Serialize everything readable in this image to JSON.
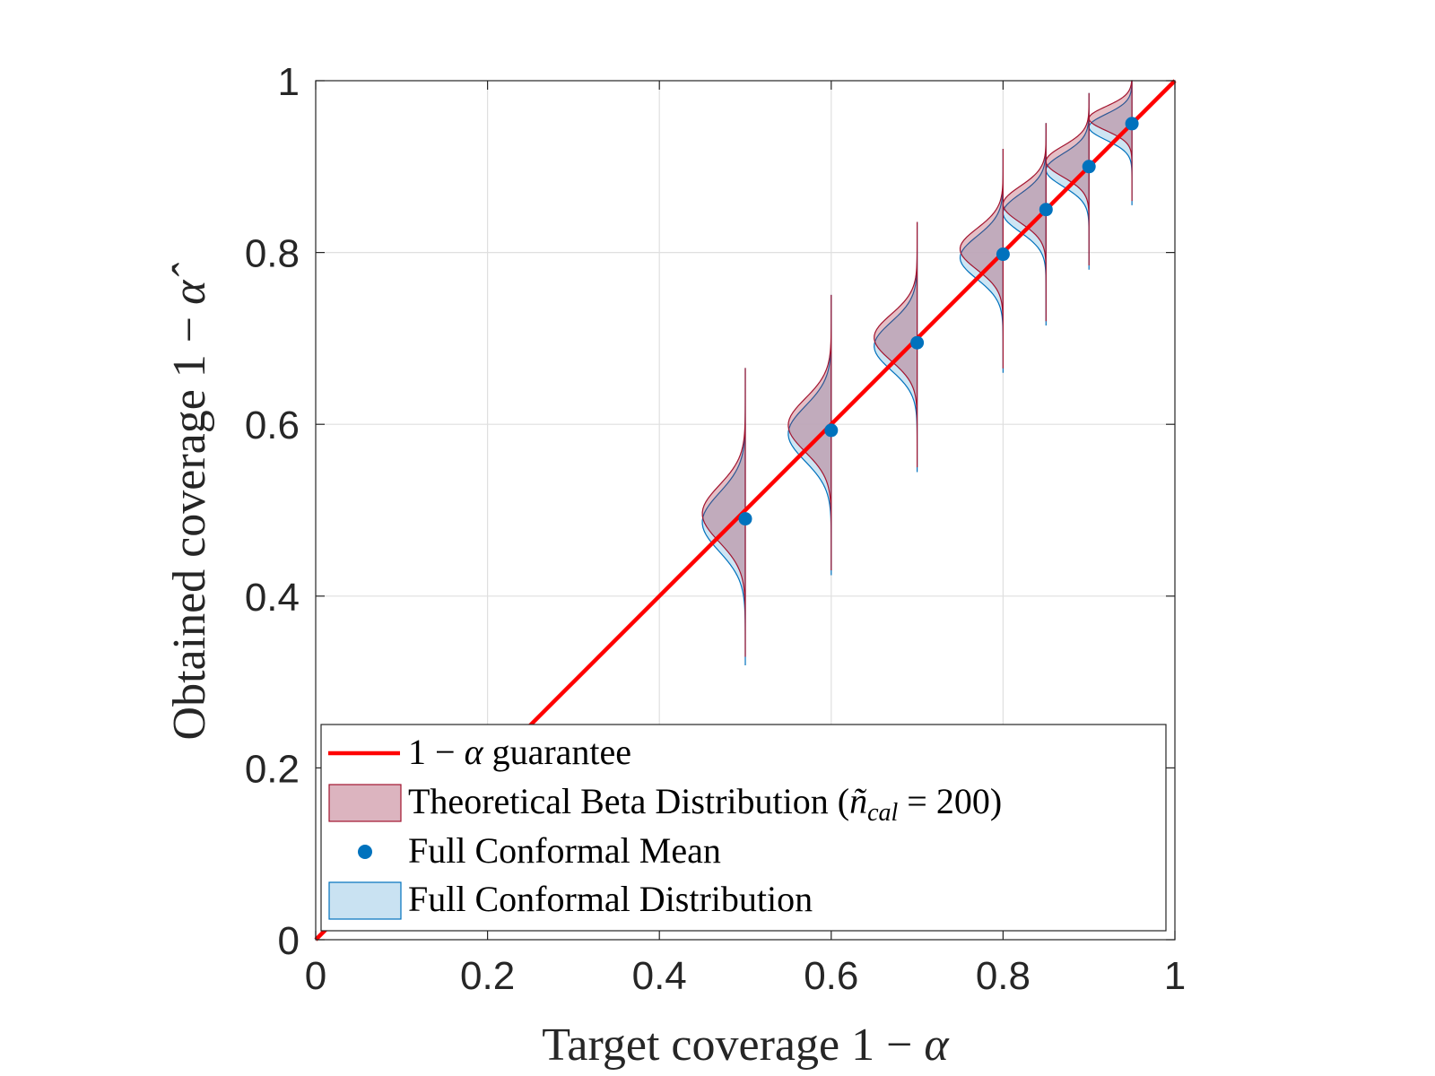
{
  "chart_data": {
    "type": "scatter",
    "title": "",
    "xlabel": {
      "text": "Target coverage",
      "math_prefix": "1 −",
      "math_symbol": "α"
    },
    "ylabel": {
      "text": "Obtained coverage",
      "math_prefix": "1 −",
      "math_symbol": "α̂"
    },
    "xlim": [
      0,
      1
    ],
    "ylim": [
      0,
      1
    ],
    "grid": true,
    "xticks": [
      0,
      0.2,
      0.4,
      0.6,
      0.8,
      1
    ],
    "xtick_labels": [
      "0",
      "0.2",
      "0.4",
      "0.6",
      "0.8",
      "1"
    ],
    "yticks": [
      0,
      0.2,
      0.4,
      0.6,
      0.8,
      1
    ],
    "ytick_labels": [
      "0",
      "0.2",
      "0.4",
      "0.6",
      "0.8",
      "1"
    ],
    "target_coverage": [
      0.5,
      0.6,
      0.7,
      0.8,
      0.85,
      0.9,
      0.95
    ],
    "full_conformal_mean": [
      0.49,
      0.593,
      0.695,
      0.798,
      0.85,
      0.9,
      0.95
    ],
    "theoretical_beta_sd": [
      0.033,
      0.031,
      0.027,
      0.024,
      0.021,
      0.018,
      0.014
    ],
    "theoretical_beta_range": [
      [
        0.33,
        0.665
      ],
      [
        0.43,
        0.75
      ],
      [
        0.55,
        0.835
      ],
      [
        0.665,
        0.92
      ],
      [
        0.72,
        0.95
      ],
      [
        0.785,
        0.985
      ],
      [
        0.86,
        1.0
      ]
    ],
    "full_conformal_sd": [
      0.034,
      0.032,
      0.028,
      0.025,
      0.022,
      0.019,
      0.015
    ],
    "full_conformal_range": [
      [
        0.32,
        0.665
      ],
      [
        0.425,
        0.75
      ],
      [
        0.545,
        0.835
      ],
      [
        0.66,
        0.92
      ],
      [
        0.715,
        0.95
      ],
      [
        0.78,
        0.985
      ],
      [
        0.855,
        1.0
      ]
    ],
    "series": [
      {
        "name": "1 − α guarantee",
        "type": "line",
        "color": "#ff0000",
        "x": [
          0,
          1
        ],
        "y": [
          0,
          1
        ]
      },
      {
        "name": "Theoretical Beta Distribution (ñcal = 200)",
        "type": "violin-left",
        "fill": "#dcb4bf",
        "edge": "#a2142f"
      },
      {
        "name": "Full Conformal Mean",
        "type": "scatter",
        "color": "#0072bd"
      },
      {
        "name": "Full Conformal Distribution",
        "type": "violin-left",
        "fill": "#c9e2f2",
        "edge": "#0072bd"
      }
    ],
    "legend": {
      "position": "bottom-left",
      "entries": [
        {
          "prefix": "1 −",
          "symbol": "α",
          "text": "guarantee"
        },
        {
          "text": "Theoretical Beta Distribution (",
          "math_n": "ñ",
          "math_sub": "cal",
          "math_rest": " = 200)"
        },
        {
          "text": "Full Conformal Mean"
        },
        {
          "text": "Full Conformal Distribution"
        }
      ]
    }
  }
}
